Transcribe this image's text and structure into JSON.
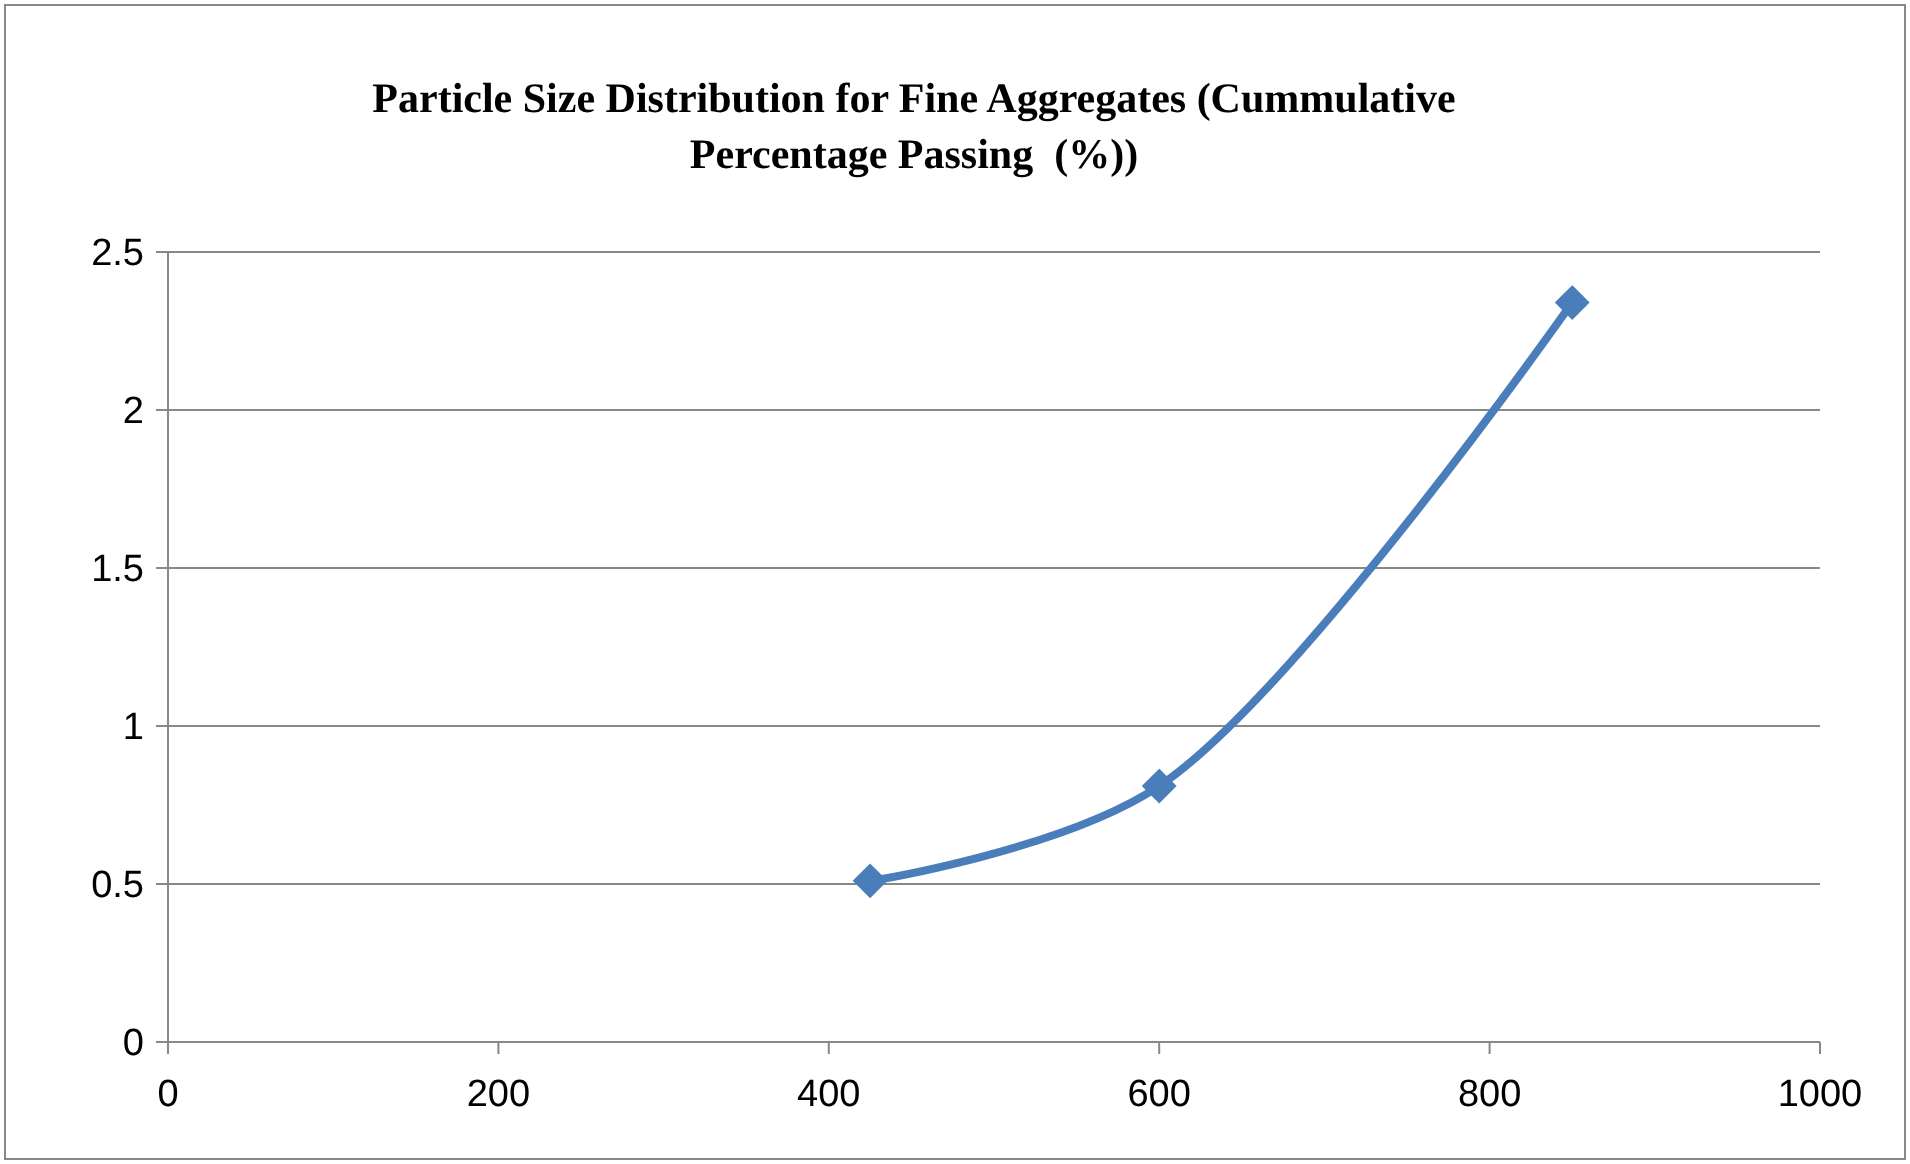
{
  "chart_data": {
    "type": "line",
    "title": "Particle Size Distribution for Fine Aggregates (Cummulative Percentage Passing  (%))",
    "x": [
      425,
      600,
      850
    ],
    "series": [
      {
        "color": "#4a7ebb",
        "values": [
          0.51,
          0.81,
          2.34
        ]
      }
    ],
    "xlim": [
      0,
      1000
    ],
    "xticks": [
      0,
      200,
      400,
      600,
      800,
      1000
    ],
    "ylim": [
      0,
      2.5
    ],
    "yticks": [
      0,
      0.5,
      1,
      1.5,
      2,
      2.5
    ],
    "grid": "y",
    "marker": "diamond",
    "line_style": "solid"
  }
}
